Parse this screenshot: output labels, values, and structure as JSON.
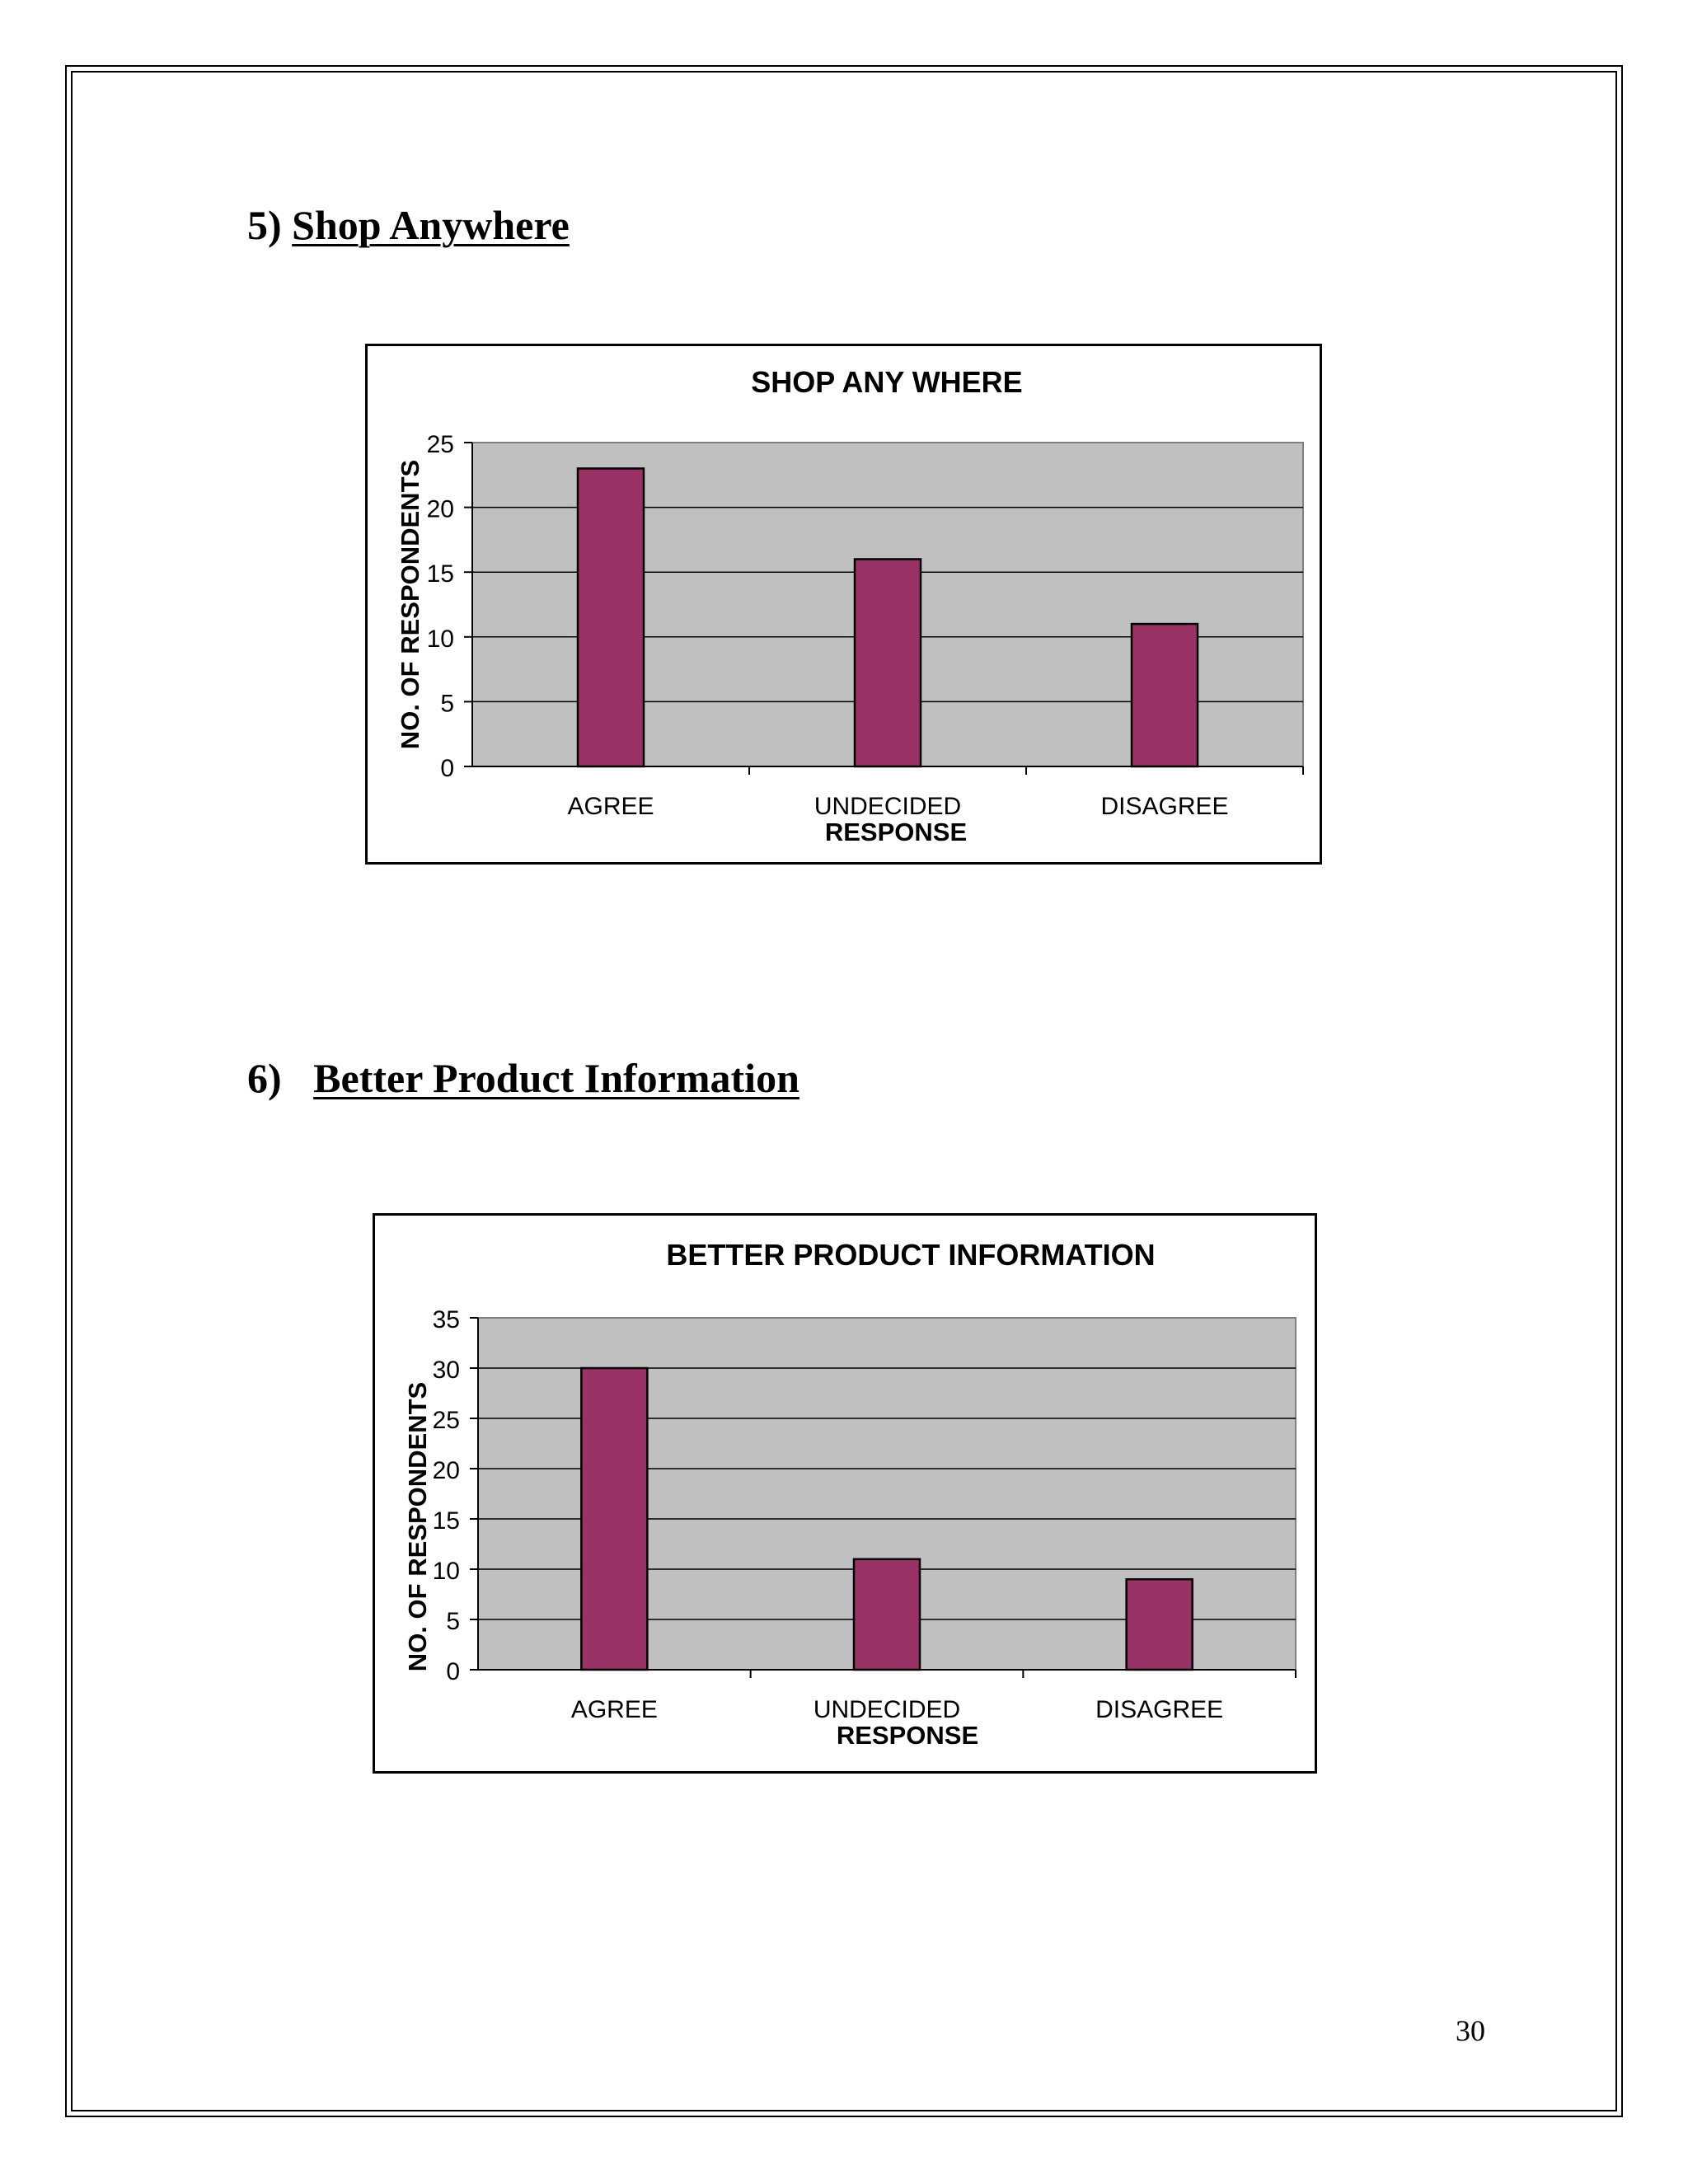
{
  "sections": [
    {
      "number": "5)",
      "title": "Shop Anywhere"
    },
    {
      "number": "6)",
      "title": "Better Product Information"
    }
  ],
  "colors": {
    "bar_fill": "#993366",
    "plot_background": "#c0c0c0",
    "gridline": "#000000"
  },
  "chart_data": [
    {
      "type": "bar",
      "title": "SHOP ANY WHERE",
      "xlabel": "RESPONSE",
      "ylabel": "NO. OF RESPONDENTS",
      "categories": [
        "AGREE",
        "UNDECIDED",
        "DISAGREE"
      ],
      "values": [
        23,
        16,
        11
      ],
      "ylim": [
        0,
        25
      ],
      "yticks": [
        0,
        5,
        10,
        15,
        20,
        25
      ],
      "grid": true,
      "legend": "none"
    },
    {
      "type": "bar",
      "title": "BETTER PRODUCT INFORMATION",
      "xlabel": "RESPONSE",
      "ylabel": "NO. OF RESPONDENTS",
      "categories": [
        "AGREE",
        "UNDECIDED",
        "DISAGREE"
      ],
      "values": [
        30,
        11,
        9
      ],
      "ylim": [
        0,
        35
      ],
      "yticks": [
        0,
        5,
        10,
        15,
        20,
        25,
        30,
        35
      ],
      "grid": true,
      "legend": "none"
    }
  ],
  "page_number": "30"
}
